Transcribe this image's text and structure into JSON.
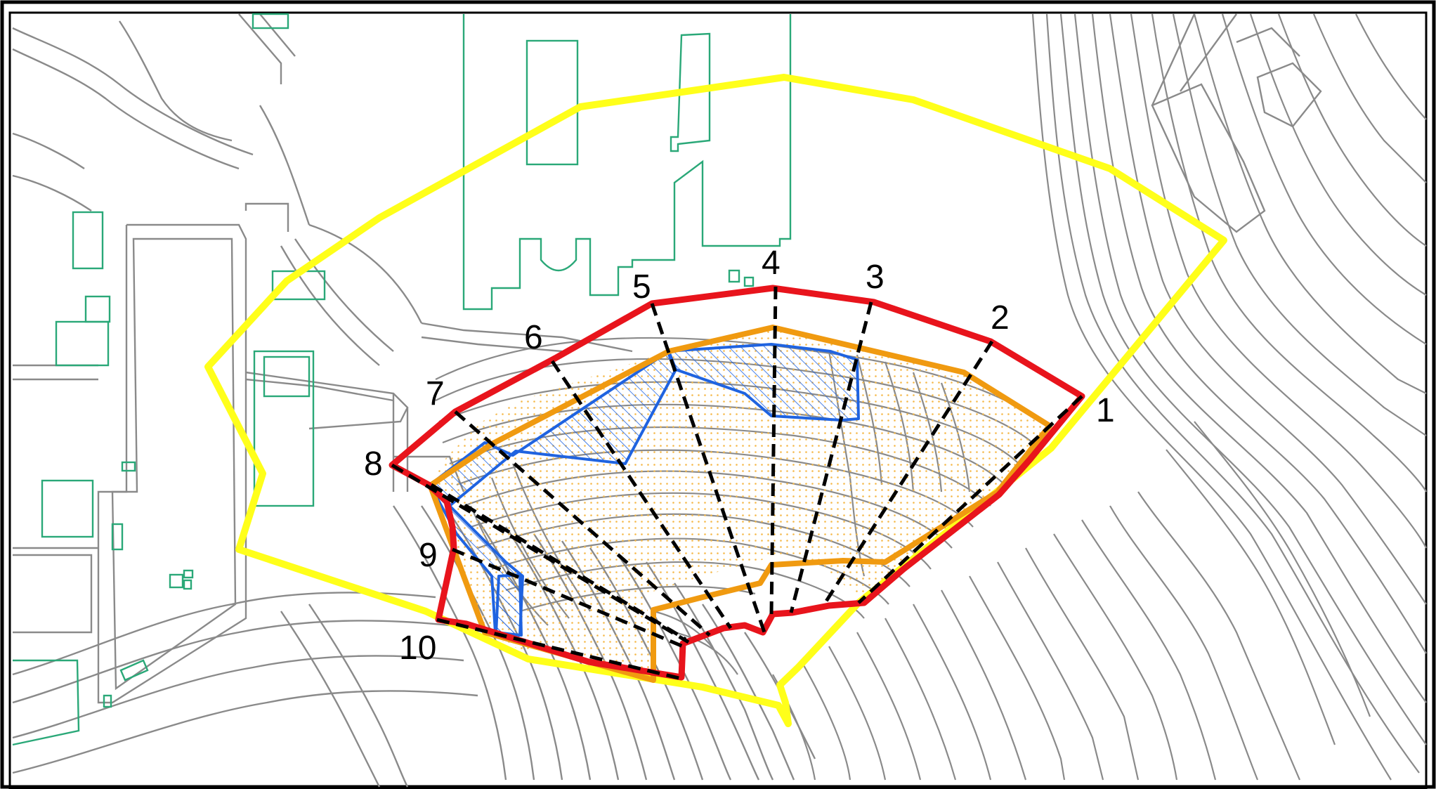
{
  "map": {
    "section_labels": [
      "1",
      "2",
      "3",
      "4",
      "5",
      "6",
      "7",
      "8",
      "9",
      "10"
    ],
    "colors": {
      "boundary_outer": "#ffff1a",
      "boundary_red": "#e8141c",
      "boundary_orange": "#f09a10",
      "hatch_blue": "#1f63e0",
      "buildings": "#2aa878",
      "contours": "#8a8a8a",
      "dot_fill": "#f5b94a"
    }
  }
}
